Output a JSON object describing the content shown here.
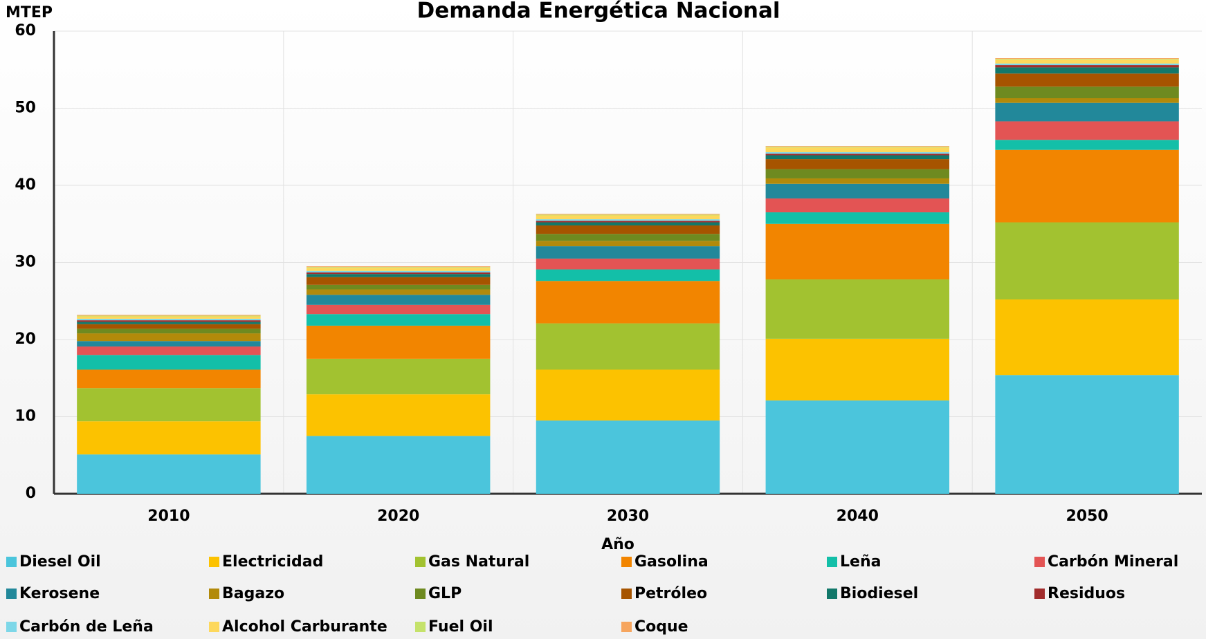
{
  "chart_data": {
    "type": "stacked_bar",
    "title": "Demanda Energética Nacional",
    "y_label": "MTEP",
    "x_label": "Año",
    "categories": [
      "2010",
      "2020",
      "2030",
      "2040",
      "2050"
    ],
    "ylim": [
      0,
      60
    ],
    "yticks": [
      0,
      10,
      20,
      30,
      40,
      50,
      60
    ],
    "grid": true,
    "legend": "bottom",
    "series": [
      {
        "name": "Diesel Oil",
        "color": "#4bc5dc",
        "values": [
          5.1,
          7.5,
          9.5,
          12.1,
          15.4
        ]
      },
      {
        "name": "Electricidad",
        "color": "#fcc200",
        "values": [
          4.3,
          5.4,
          6.6,
          8.0,
          9.8
        ]
      },
      {
        "name": "Gas Natural",
        "color": "#a2c230",
        "values": [
          4.3,
          4.6,
          6.0,
          7.7,
          10.0
        ]
      },
      {
        "name": "Gasolina",
        "color": "#f28500",
        "values": [
          2.4,
          4.3,
          5.5,
          7.2,
          9.4
        ]
      },
      {
        "name": "Leña",
        "color": "#13bfa8",
        "values": [
          1.9,
          1.5,
          1.5,
          1.5,
          1.3
        ]
      },
      {
        "name": "Carbón Mineral",
        "color": "#e35454",
        "values": [
          1.1,
          1.2,
          1.4,
          1.8,
          2.4
        ]
      },
      {
        "name": "Kerosene",
        "color": "#22889a",
        "values": [
          0.7,
          1.3,
          1.6,
          1.9,
          2.4
        ]
      },
      {
        "name": "Bagazo",
        "color": "#b28a0a",
        "values": [
          1.0,
          0.7,
          0.7,
          0.7,
          0.6
        ]
      },
      {
        "name": "GLP",
        "color": "#6e8a20",
        "values": [
          0.6,
          0.6,
          0.9,
          1.2,
          1.5
        ]
      },
      {
        "name": "Petróleo",
        "color": "#a65400",
        "values": [
          0.6,
          1.0,
          1.1,
          1.3,
          1.7
        ]
      },
      {
        "name": "Biodiesel",
        "color": "#12786a",
        "values": [
          0.3,
          0.4,
          0.4,
          0.5,
          0.8
        ]
      },
      {
        "name": "Residuos",
        "color": "#a12c2c",
        "values": [
          0.2,
          0.2,
          0.2,
          0.2,
          0.3
        ]
      },
      {
        "name": "Carbón de Leña",
        "color": "#7dd7e8",
        "values": [
          0.2,
          0.2,
          0.2,
          0.2,
          0.2
        ]
      },
      {
        "name": "Alcohol Carburante",
        "color": "#fdd85c",
        "values": [
          0.3,
          0.4,
          0.5,
          0.6,
          0.5
        ]
      },
      {
        "name": "Fuel Oil",
        "color": "#c5e26a",
        "values": [
          0.1,
          0.1,
          0.1,
          0.1,
          0.1
        ]
      },
      {
        "name": "Coque",
        "color": "#f6a55e",
        "values": [
          0.1,
          0.1,
          0.1,
          0.1,
          0.1
        ]
      }
    ]
  }
}
